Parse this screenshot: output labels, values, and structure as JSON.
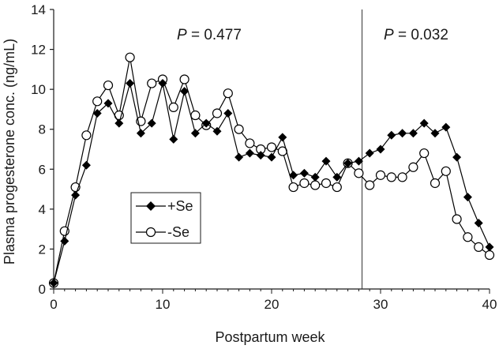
{
  "chart_data": {
    "type": "line",
    "xlabel": "Postpartum week",
    "ylabel": "Plasma progesterone conc. (ng/mL)",
    "xlim": [
      0,
      40
    ],
    "ylim": [
      0,
      14
    ],
    "xticks": [
      0,
      10,
      20,
      30,
      40
    ],
    "yticks": [
      0,
      2,
      4,
      6,
      8,
      10,
      12,
      14
    ],
    "grid": false,
    "legend_position": "lower-left",
    "annotations": [
      {
        "text_p": "P",
        "text_rest": " = 0.477"
      },
      {
        "text_p": "P",
        "text_rest": " = 0.032"
      }
    ],
    "divider_week": 28.3,
    "series": [
      {
        "name": "+Se",
        "marker": "filled-diamond",
        "color": "#000000",
        "x": [
          0,
          1,
          2,
          3,
          4,
          5,
          6,
          7,
          8,
          9,
          10,
          11,
          12,
          13,
          14,
          15,
          16,
          17,
          18,
          19,
          20,
          21,
          22,
          23,
          24,
          25,
          26,
          27,
          28,
          29,
          30,
          31,
          32,
          33,
          34,
          35,
          36,
          37,
          38,
          39,
          40
        ],
        "y": [
          0.3,
          2.4,
          4.7,
          6.2,
          8.8,
          9.3,
          8.3,
          10.3,
          7.8,
          8.3,
          10.3,
          7.5,
          9.9,
          7.8,
          8.3,
          7.9,
          8.8,
          6.6,
          6.8,
          6.7,
          6.6,
          7.6,
          5.7,
          5.8,
          5.6,
          6.4,
          5.6,
          6.3,
          6.4,
          6.8,
          7.0,
          7.7,
          7.8,
          7.8,
          8.3,
          7.8,
          8.1,
          6.6,
          4.6,
          3.3,
          2.1
        ]
      },
      {
        "name": "-Se",
        "marker": "open-circle",
        "color": "#000000",
        "x": [
          0,
          1,
          2,
          3,
          4,
          5,
          6,
          7,
          8,
          9,
          10,
          11,
          12,
          13,
          14,
          15,
          16,
          17,
          18,
          19,
          20,
          21,
          22,
          23,
          24,
          25,
          26,
          27,
          28,
          29,
          30,
          31,
          32,
          33,
          34,
          35,
          36,
          37,
          38,
          39,
          40
        ],
        "y": [
          0.3,
          2.9,
          5.1,
          7.7,
          9.4,
          10.2,
          8.7,
          11.6,
          8.4,
          10.3,
          10.5,
          9.1,
          10.5,
          8.7,
          8.2,
          8.8,
          9.8,
          8.0,
          7.3,
          7.0,
          7.1,
          6.9,
          5.1,
          5.3,
          5.2,
          5.3,
          5.1,
          6.3,
          5.8,
          5.2,
          5.7,
          5.6,
          5.6,
          6.1,
          6.8,
          5.3,
          5.9,
          3.5,
          2.6,
          2.1,
          1.7
        ]
      }
    ]
  }
}
